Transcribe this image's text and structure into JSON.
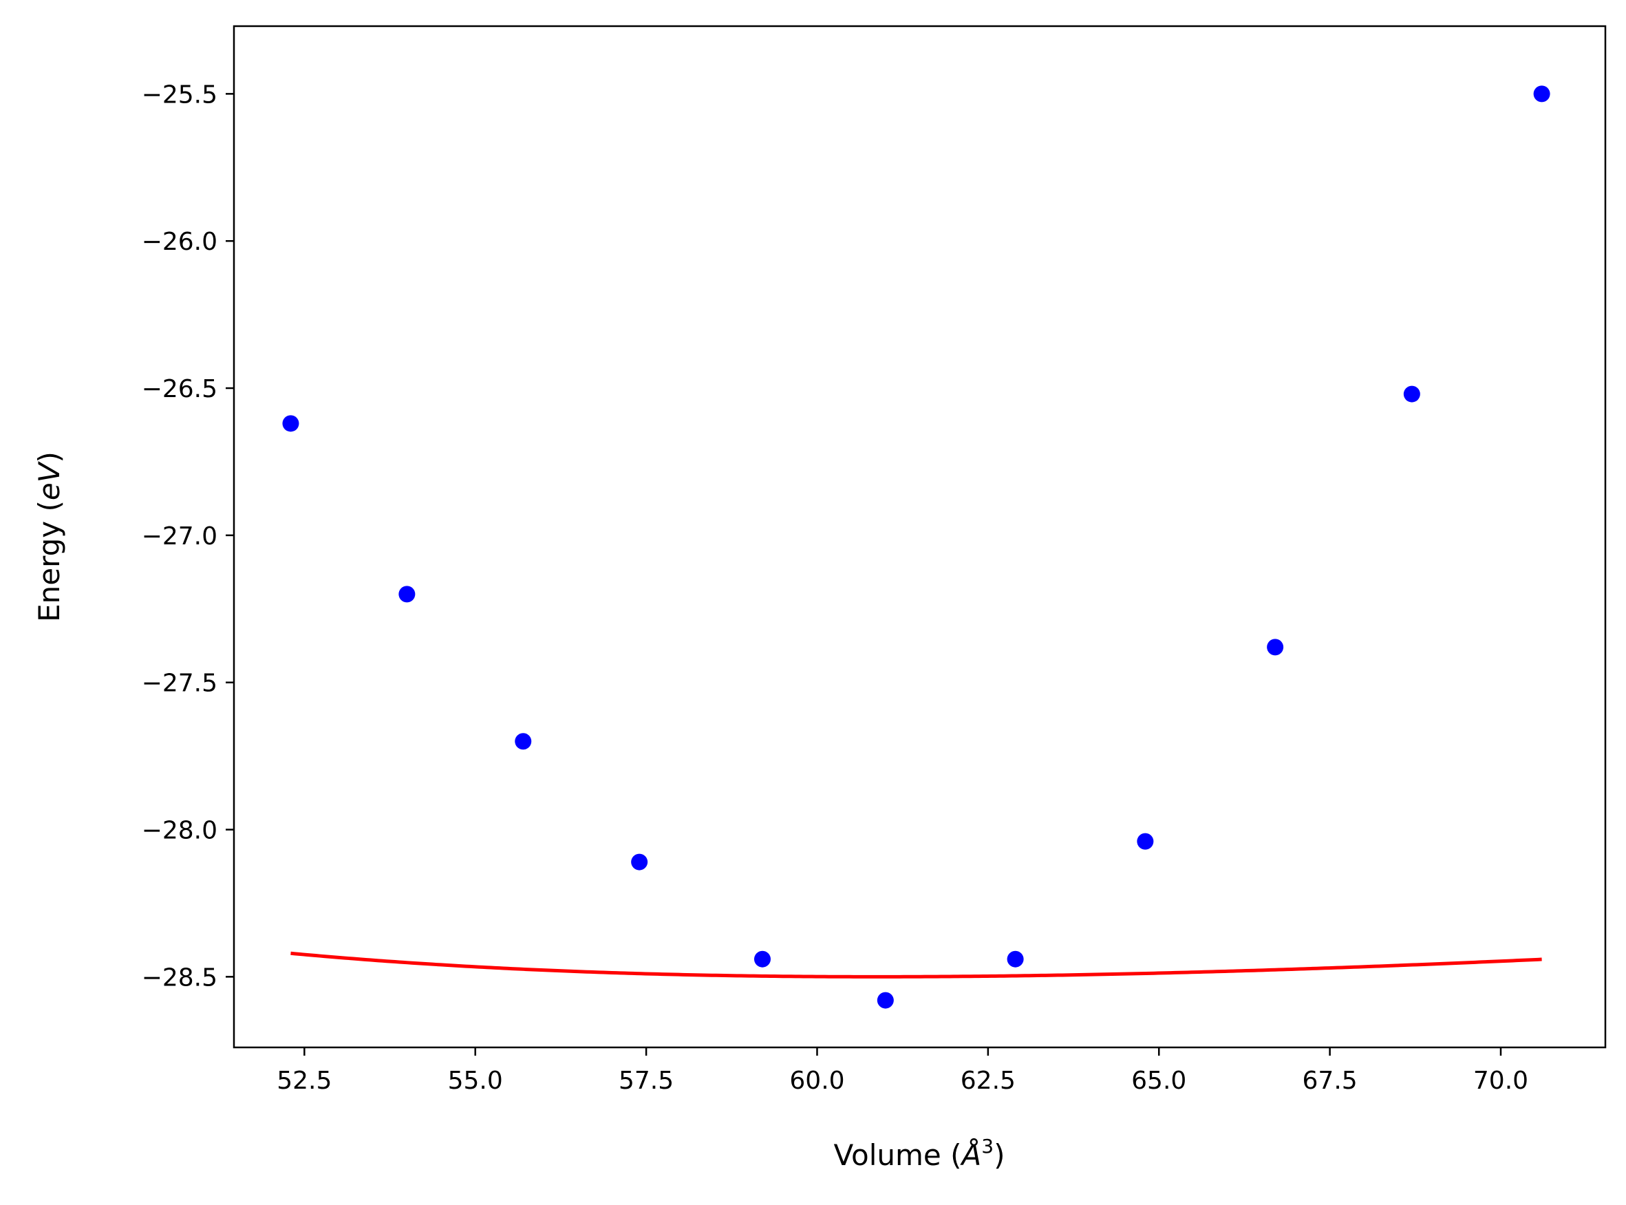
{
  "chart_data": {
    "type": "scatter",
    "title": "",
    "xlabel": "Volume (",
    "xlabel_symbol": "Å",
    "xlabel_exponent": "3",
    "xlabel_close": ")",
    "ylabel": "Energy (",
    "ylabel_symbol": "eV",
    "ylabel_close": ")",
    "xlim": [
      51.47,
      71.53
    ],
    "ylim": [
      -28.74,
      -25.27
    ],
    "xticks": [
      52.5,
      55.0,
      57.5,
      60.0,
      62.5,
      65.0,
      67.5,
      70.0
    ],
    "yticks": [
      -28.5,
      -28.0,
      -27.5,
      -27.0,
      -26.5,
      -26.0,
      -25.5
    ],
    "x_tick_labels": [
      "52.5",
      "55.0",
      "57.5",
      "60.0",
      "62.5",
      "65.0",
      "67.5",
      "70.0"
    ],
    "y_tick_labels": [
      "−28.5",
      "−28.0",
      "−27.5",
      "−27.0",
      "−26.5",
      "−26.0",
      "−25.5"
    ],
    "grid": false,
    "series": [
      {
        "kind": "points",
        "color": "#0000ff",
        "x": [
          52.3,
          54.0,
          55.7,
          57.4,
          59.2,
          61.0,
          62.9,
          64.8,
          66.7,
          68.7,
          70.6
        ],
        "y": [
          -26.62,
          -27.2,
          -27.7,
          -28.11,
          -28.44,
          -28.58,
          -28.44,
          -28.04,
          -27.38,
          -26.52,
          -25.5
        ]
      },
      {
        "kind": "fit-curve",
        "color": "#ff0000",
        "x_range": [
          52.3,
          70.6
        ],
        "fit": {
          "v0": 60.85,
          "e0": -28.5,
          "b0": 0.1,
          "b0_prime": 4.6
        }
      }
    ]
  }
}
